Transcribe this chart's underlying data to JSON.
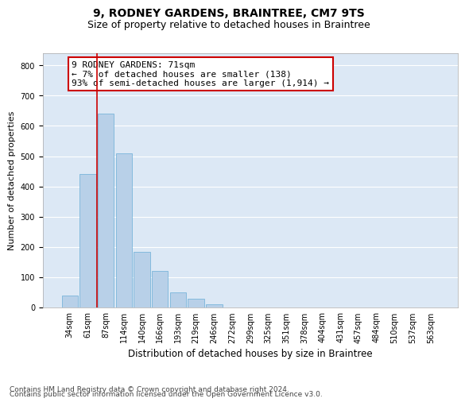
{
  "title": "9, RODNEY GARDENS, BRAINTREE, CM7 9TS",
  "subtitle": "Size of property relative to detached houses in Braintree",
  "xlabel": "Distribution of detached houses by size in Braintree",
  "ylabel": "Number of detached properties",
  "bar_color": "#b8d0e8",
  "bar_edge_color": "#6aaed6",
  "bg_color": "#dce8f5",
  "grid_color": "#ffffff",
  "annotation_box_color": "#cc0000",
  "annotation_line1": "9 RODNEY GARDENS: 71sqm",
  "annotation_line2": "← 7% of detached houses are smaller (138)",
  "annotation_line3": "93% of semi-detached houses are larger (1,914) →",
  "vline_x": 1.5,
  "vline_color": "#cc0000",
  "categories": [
    "34sqm",
    "61sqm",
    "87sqm",
    "114sqm",
    "140sqm",
    "166sqm",
    "193sqm",
    "219sqm",
    "246sqm",
    "272sqm",
    "299sqm",
    "325sqm",
    "351sqm",
    "378sqm",
    "404sqm",
    "431sqm",
    "457sqm",
    "484sqm",
    "510sqm",
    "537sqm",
    "563sqm"
  ],
  "values": [
    40,
    440,
    640,
    510,
    185,
    120,
    50,
    30,
    10,
    0,
    0,
    0,
    0,
    0,
    0,
    0,
    0,
    0,
    0,
    0,
    0
  ],
  "ylim": [
    0,
    840
  ],
  "yticks": [
    0,
    100,
    200,
    300,
    400,
    500,
    600,
    700,
    800
  ],
  "footer_line1": "Contains HM Land Registry data © Crown copyright and database right 2024.",
  "footer_line2": "Contains public sector information licensed under the Open Government Licence v3.0.",
  "title_fontsize": 10,
  "subtitle_fontsize": 9,
  "xlabel_fontsize": 8.5,
  "ylabel_fontsize": 8,
  "tick_fontsize": 7,
  "annotation_fontsize": 8,
  "footer_fontsize": 6.5
}
